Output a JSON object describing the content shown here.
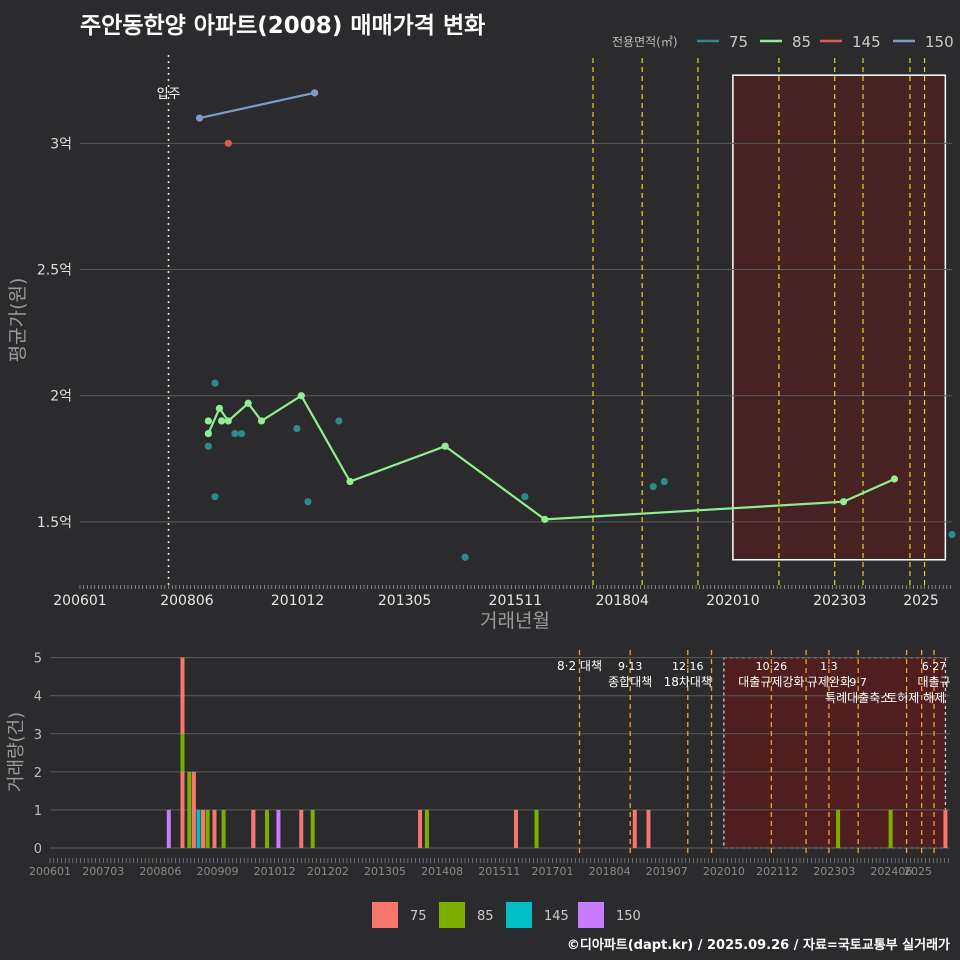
{
  "title": "주안동한양 아파트(2008) 매매가격 변화",
  "credit": "©디아파트(dapt.kr) / 2025.09.26 / 자료=국토교통부 실거래가",
  "colors": {
    "bg": "#2b2b2d",
    "grid": "#5a5a5a",
    "s75_line": "#2a8a8c",
    "s85_line": "#90ee90",
    "s145_line": "#e05a55",
    "s150_line": "#7a9cc6",
    "b75": "#f8766d",
    "b85": "#7cae00",
    "b145": "#00bfc4",
    "b150": "#c77cff",
    "policy_line": "#e6d21e",
    "policy_line_bottom": "#f0a030",
    "highlight_fill": "#5a1c1c"
  },
  "chart_data": [
    {
      "type": "line",
      "title": "주안동한양 아파트(2008) 매매가격 변화",
      "xlabel": "거래년월",
      "ylabel": "평균가(원)",
      "x_tick_labels": [
        "200601",
        "200806",
        "201012",
        "201305",
        "201511",
        "201804",
        "202010",
        "202303",
        "2025"
      ],
      "y_tick_labels": [
        "1.5억",
        "2억",
        "2.5억",
        "3억"
      ],
      "y_ticks": [
        1.5,
        2.0,
        2.5,
        3.0
      ],
      "ylim": [
        1.25,
        3.35
      ],
      "xlim": [
        2006.0,
        2025.7
      ],
      "legend_title": "전용면적(㎡)",
      "legend": [
        "75",
        "85",
        "145",
        "150"
      ],
      "legend_position": "top-right",
      "move_in": {
        "x": 2008.0,
        "label": "입주"
      },
      "policy_lines": [
        2017.59,
        2018.7,
        2019.96,
        2021.79,
        2023.05,
        2023.69,
        2024.75,
        2025.08
      ],
      "highlight_range": [
        2020.75,
        2025.55
      ],
      "highlight_y": [
        1.35,
        3.27
      ],
      "series": [
        {
          "name": "75",
          "points": [
            [
              2008.9,
              1.8
            ],
            [
              2008.9,
              1.85
            ],
            [
              2009.05,
              2.05
            ],
            [
              2009.05,
              1.6
            ],
            [
              2009.2,
              1.9
            ],
            [
              2009.5,
              1.85
            ],
            [
              2009.65,
              1.85
            ],
            [
              2010.9,
              1.87
            ],
            [
              2011.15,
              1.58
            ],
            [
              2011.85,
              1.9
            ],
            [
              2014.7,
              1.36
            ],
            [
              2016.05,
              1.6
            ],
            [
              2018.95,
              1.64
            ],
            [
              2019.2,
              1.66
            ],
            [
              2025.7,
              1.45
            ]
          ]
        },
        {
          "name": "85",
          "line": [
            [
              2008.9,
              1.85
            ],
            [
              2009.15,
              1.95
            ],
            [
              2009.35,
              1.9
            ],
            [
              2009.8,
              1.97
            ],
            [
              2010.1,
              1.9
            ],
            [
              2011.0,
              2.0
            ],
            [
              2012.1,
              1.66
            ],
            [
              2014.25,
              1.8
            ],
            [
              2016.5,
              1.51
            ],
            [
              2023.25,
              1.58
            ],
            [
              2024.4,
              1.67
            ]
          ],
          "points": [
            [
              2008.9,
              1.85
            ],
            [
              2008.9,
              1.9
            ],
            [
              2009.15,
              1.95
            ],
            [
              2009.2,
              1.9
            ],
            [
              2009.35,
              1.9
            ],
            [
              2009.8,
              1.97
            ],
            [
              2010.1,
              1.9
            ],
            [
              2011.0,
              2.0
            ],
            [
              2012.1,
              1.66
            ],
            [
              2014.25,
              1.8
            ],
            [
              2016.5,
              1.51
            ],
            [
              2023.25,
              1.58
            ],
            [
              2024.4,
              1.67
            ]
          ]
        },
        {
          "name": "145",
          "points": [
            [
              2009.35,
              3.0
            ]
          ]
        },
        {
          "name": "150",
          "line": [
            [
              2008.7,
              3.1
            ],
            [
              2011.3,
              3.2
            ]
          ],
          "points": [
            [
              2008.7,
              3.1
            ],
            [
              2011.3,
              3.2
            ]
          ]
        }
      ]
    },
    {
      "type": "bar",
      "ylabel": "거래량(건)",
      "x_tick_labels": [
        "200601",
        "200703",
        "200806",
        "200909",
        "201012",
        "201202",
        "201305",
        "201408",
        "201511",
        "201701",
        "201804",
        "201907",
        "202010",
        "202112",
        "202303",
        "202406",
        "2025"
      ],
      "y_tick_labels": [
        "0",
        "1",
        "2",
        "3",
        "4",
        "5"
      ],
      "ylim": [
        0,
        5.2
      ],
      "xlim": [
        2006.0,
        2025.7
      ],
      "legend": [
        "75",
        "85",
        "145",
        "150"
      ],
      "legend_position": "bottom",
      "policy_lines": [
        2017.59,
        2018.7,
        2019.96,
        2020.48,
        2021.79,
        2022.55,
        2023.05,
        2023.69,
        2024.75,
        2025.08,
        2025.35
      ],
      "highlight_range": [
        2020.75,
        2025.6
      ],
      "annotations": [
        {
          "x": 2017.59,
          "lines": [
            "8·2 대책"
          ],
          "row": 0
        },
        {
          "x": 2018.7,
          "lines": [
            "9·13",
            "종합대책"
          ],
          "row": 0
        },
        {
          "x": 2019.96,
          "lines": [
            "12·16",
            "18차대책"
          ],
          "row": 0
        },
        {
          "x": 2021.79,
          "lines": [
            "10·26",
            "대출규제강화"
          ],
          "row": 0
        },
        {
          "x": 2023.05,
          "lines": [
            "1·3",
            "규제완화"
          ],
          "row": 0
        },
        {
          "x": 2023.69,
          "lines": [
            "9·7",
            "특례대출축소"
          ],
          "row": 1
        },
        {
          "x": 2025.35,
          "lines": [
            "6·27",
            "대출규"
          ],
          "row": 0
        },
        {
          "x": 2024.95,
          "lines": [
            "토허제 해제"
          ],
          "row": 2
        }
      ],
      "series": [
        {
          "name": "150",
          "bars": [
            [
              2008.6,
              1
            ],
            [
              2010.45,
              1
            ],
            [
              2011.0,
              1
            ]
          ]
        },
        {
          "name": "75",
          "bars": [
            [
              2008.9,
              2
            ],
            [
              2009.15,
              2
            ],
            [
              2009.35,
              1
            ],
            [
              2009.6,
              1
            ],
            [
              2010.45,
              1
            ],
            [
              2011.5,
              1
            ],
            [
              2014.1,
              1
            ],
            [
              2016.2,
              1
            ],
            [
              2018.8,
              1
            ],
            [
              2019.1,
              1
            ],
            [
              2025.6,
              1
            ]
          ]
        },
        {
          "name": "85",
          "bars": [
            [
              2009.05,
              2
            ],
            [
              2009.45,
              1
            ],
            [
              2009.8,
              1
            ],
            [
              2010.75,
              1
            ],
            [
              2011.75,
              1
            ],
            [
              2014.25,
              1
            ],
            [
              2016.65,
              1
            ],
            [
              2023.25,
              1
            ],
            [
              2024.4,
              1
            ]
          ]
        },
        {
          "name": "145",
          "bars": [
            [
              2009.25,
              1
            ]
          ]
        },
        {
          "name": "85_stack",
          "bars": [
            [
              2008.9,
              3
            ]
          ]
        },
        {
          "name": "75_top",
          "bars": [
            [
              2008.9,
              5
            ]
          ]
        }
      ]
    }
  ]
}
